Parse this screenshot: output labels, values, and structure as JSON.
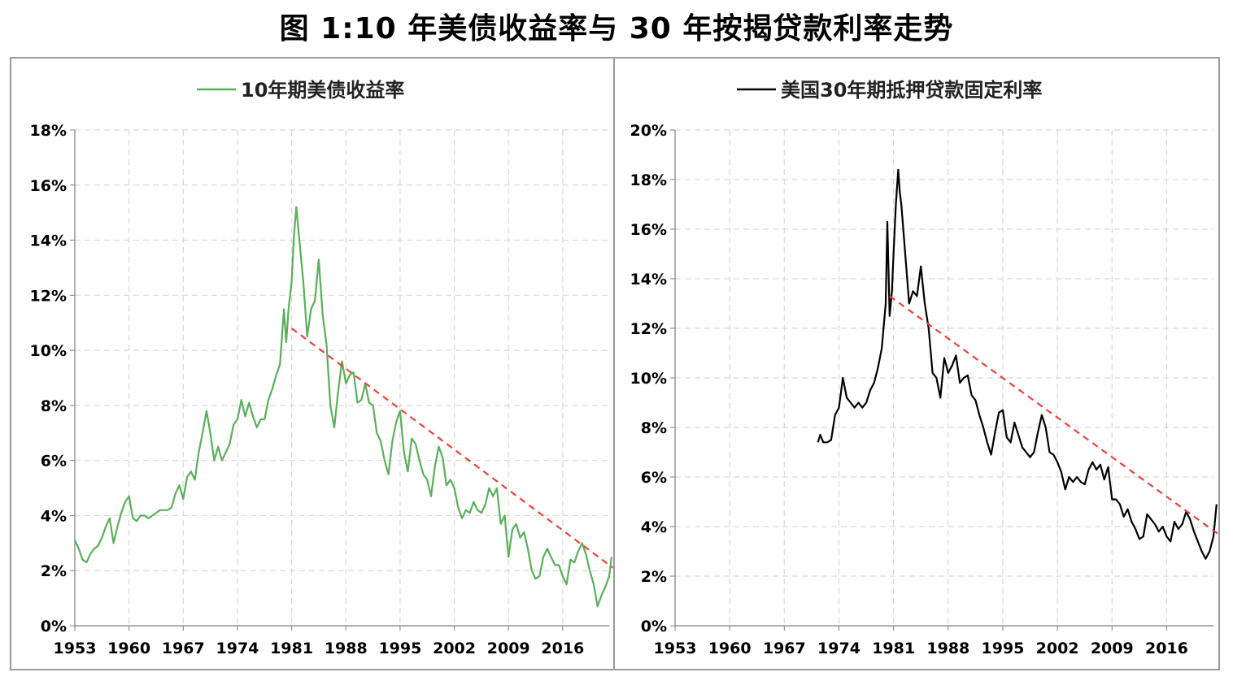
{
  "title": "图 1:10 年美债收益率与 30 年按揭贷款利率走势",
  "chart_data": [
    {
      "type": "line",
      "legend": "10年期美债收益率",
      "legend_position": "top-center",
      "xlim": [
        1953,
        2022
      ],
      "ylim": [
        0,
        18
      ],
      "x_ticks": [
        "1953",
        "1960",
        "1967",
        "1974",
        "1981",
        "1988",
        "1995",
        "2002",
        "2009",
        "2016"
      ],
      "y_ticks": [
        "0%",
        "2%",
        "4%",
        "6%",
        "8%",
        "10%",
        "12%",
        "14%",
        "16%",
        "18%"
      ],
      "grid": true,
      "series": [
        {
          "name": "10年期美债收益率",
          "color": "#5aaf5a",
          "x": [
            1953.0,
            1953.5,
            1954.0,
            1954.5,
            1955.0,
            1955.5,
            1956.0,
            1956.5,
            1957.0,
            1957.5,
            1958.0,
            1958.5,
            1959.0,
            1959.5,
            1960.0,
            1960.5,
            1961.0,
            1961.5,
            1962.0,
            1962.5,
            1963.0,
            1963.5,
            1964.0,
            1964.5,
            1965.0,
            1965.5,
            1966.0,
            1966.5,
            1967.0,
            1967.5,
            1968.0,
            1968.5,
            1969.0,
            1969.5,
            1970.0,
            1970.5,
            1971.0,
            1971.5,
            1972.0,
            1972.5,
            1973.0,
            1973.5,
            1974.0,
            1974.5,
            1975.0,
            1975.5,
            1976.0,
            1976.5,
            1977.0,
            1977.5,
            1978.0,
            1978.5,
            1979.0,
            1979.5,
            1980.0,
            1980.3,
            1980.6,
            1981.0,
            1981.3,
            1981.6,
            1982.0,
            1982.5,
            1983.0,
            1983.5,
            1984.0,
            1984.5,
            1985.0,
            1985.5,
            1986.0,
            1986.5,
            1987.0,
            1987.5,
            1988.0,
            1988.5,
            1989.0,
            1989.5,
            1990.0,
            1990.5,
            1991.0,
            1991.5,
            1992.0,
            1992.5,
            1993.0,
            1993.5,
            1994.0,
            1994.5,
            1995.0,
            1995.5,
            1996.0,
            1996.5,
            1997.0,
            1997.5,
            1998.0,
            1998.5,
            1999.0,
            1999.5,
            2000.0,
            2000.5,
            2001.0,
            2001.5,
            2002.0,
            2002.5,
            2003.0,
            2003.5,
            2004.0,
            2004.5,
            2005.0,
            2005.5,
            2006.0,
            2006.5,
            2007.0,
            2007.5,
            2008.0,
            2008.5,
            2009.0,
            2009.5,
            2010.0,
            2010.5,
            2011.0,
            2011.5,
            2012.0,
            2012.5,
            2013.0,
            2013.5,
            2014.0,
            2014.5,
            2015.0,
            2015.5,
            2016.0,
            2016.5,
            2017.0,
            2017.5,
            2018.0,
            2018.5,
            2019.0,
            2019.5,
            2020.0,
            2020.5,
            2021.0,
            2021.5,
            2022.0,
            2022.3
          ],
          "y": [
            3.1,
            2.8,
            2.4,
            2.3,
            2.6,
            2.8,
            2.9,
            3.2,
            3.6,
            3.9,
            3.0,
            3.6,
            4.1,
            4.5,
            4.7,
            3.9,
            3.8,
            4.0,
            4.0,
            3.9,
            4.0,
            4.1,
            4.2,
            4.2,
            4.2,
            4.3,
            4.8,
            5.1,
            4.6,
            5.4,
            5.6,
            5.3,
            6.3,
            7.0,
            7.8,
            7.0,
            6.0,
            6.5,
            6.0,
            6.3,
            6.6,
            7.3,
            7.5,
            8.2,
            7.6,
            8.1,
            7.6,
            7.2,
            7.5,
            7.5,
            8.2,
            8.6,
            9.1,
            9.5,
            11.5,
            10.3,
            11.5,
            12.5,
            14.2,
            15.2,
            14.0,
            12.5,
            10.5,
            11.5,
            11.8,
            13.3,
            11.3,
            10.2,
            8.0,
            7.2,
            8.5,
            9.6,
            8.8,
            9.1,
            9.2,
            8.1,
            8.2,
            8.8,
            8.1,
            8.0,
            7.0,
            6.7,
            6.0,
            5.5,
            6.7,
            7.4,
            7.8,
            6.3,
            5.6,
            6.8,
            6.6,
            6.0,
            5.5,
            5.3,
            4.7,
            5.8,
            6.5,
            6.1,
            5.1,
            5.3,
            5.0,
            4.3,
            3.9,
            4.2,
            4.1,
            4.5,
            4.2,
            4.1,
            4.4,
            5.0,
            4.7,
            5.0,
            3.7,
            4.0,
            2.5,
            3.5,
            3.7,
            3.2,
            3.4,
            2.8,
            2.0,
            1.7,
            1.8,
            2.5,
            2.8,
            2.5,
            2.2,
            2.2,
            1.8,
            1.5,
            2.4,
            2.3,
            2.7,
            3.0,
            2.6,
            2.0,
            1.5,
            0.7,
            1.1,
            1.4,
            1.8,
            2.5
          ],
          "style": "solid"
        },
        {
          "name": "trend",
          "color": "#e8433a",
          "x": [
            1981.0,
            2022.5
          ],
          "y": [
            10.8,
            2.1
          ],
          "style": "dashed"
        }
      ]
    },
    {
      "type": "line",
      "legend": "美国30年期抵押贷款固定利率",
      "legend_position": "top-center",
      "xlim": [
        1953,
        2022
      ],
      "ylim": [
        0,
        20
      ],
      "x_ticks": [
        "1953",
        "1960",
        "1967",
        "1974",
        "1981",
        "1988",
        "1995",
        "2002",
        "2009",
        "2016"
      ],
      "y_ticks": [
        "0%",
        "2%",
        "4%",
        "6%",
        "8%",
        "10%",
        "12%",
        "14%",
        "16%",
        "18%",
        "20%"
      ],
      "grid": true,
      "series": [
        {
          "name": "美国30年期抵押贷款固定利率",
          "color": "#000000",
          "x": [
            1971.3,
            1971.6,
            1972.0,
            1972.5,
            1973.0,
            1973.5,
            1974.0,
            1974.5,
            1975.0,
            1975.5,
            1976.0,
            1976.5,
            1977.0,
            1977.5,
            1978.0,
            1978.5,
            1979.0,
            1979.5,
            1980.0,
            1980.2,
            1980.5,
            1980.8,
            1981.0,
            1981.3,
            1981.6,
            1981.8,
            1982.0,
            1982.5,
            1983.0,
            1983.5,
            1984.0,
            1984.5,
            1985.0,
            1985.5,
            1986.0,
            1986.5,
            1987.0,
            1987.5,
            1988.0,
            1988.5,
            1989.0,
            1989.5,
            1990.0,
            1990.5,
            1991.0,
            1991.5,
            1992.0,
            1992.5,
            1993.0,
            1993.5,
            1994.0,
            1994.5,
            1995.0,
            1995.5,
            1996.0,
            1996.5,
            1997.0,
            1997.5,
            1998.0,
            1998.5,
            1999.0,
            1999.5,
            2000.0,
            2000.5,
            2001.0,
            2001.5,
            2002.0,
            2002.5,
            2003.0,
            2003.5,
            2004.0,
            2004.5,
            2005.0,
            2005.5,
            2006.0,
            2006.5,
            2007.0,
            2007.5,
            2008.0,
            2008.5,
            2009.0,
            2009.5,
            2010.0,
            2010.5,
            2011.0,
            2011.5,
            2012.0,
            2012.5,
            2013.0,
            2013.5,
            2014.0,
            2014.5,
            2015.0,
            2015.5,
            2016.0,
            2016.5,
            2017.0,
            2017.5,
            2018.0,
            2018.5,
            2019.0,
            2019.5,
            2020.0,
            2020.5,
            2021.0,
            2021.5,
            2022.0,
            2022.4
          ],
          "y": [
            7.4,
            7.7,
            7.4,
            7.4,
            7.5,
            8.5,
            8.8,
            10.0,
            9.2,
            9.0,
            8.8,
            9.0,
            8.8,
            9.0,
            9.5,
            9.8,
            10.4,
            11.2,
            13.0,
            16.3,
            12.5,
            13.5,
            15.0,
            17.0,
            18.4,
            17.5,
            17.0,
            15.0,
            13.0,
            13.5,
            13.3,
            14.5,
            13.0,
            12.0,
            10.2,
            10.0,
            9.2,
            10.8,
            10.2,
            10.5,
            10.9,
            9.8,
            10.0,
            10.1,
            9.3,
            9.1,
            8.5,
            8.0,
            7.4,
            6.9,
            7.8,
            8.6,
            8.7,
            7.6,
            7.4,
            8.2,
            7.7,
            7.2,
            7.0,
            6.8,
            7.0,
            7.8,
            8.5,
            8.0,
            7.0,
            6.9,
            6.6,
            6.2,
            5.5,
            6.0,
            5.8,
            6.0,
            5.8,
            5.7,
            6.3,
            6.6,
            6.3,
            6.5,
            5.9,
            6.4,
            5.1,
            5.1,
            4.9,
            4.4,
            4.7,
            4.2,
            3.9,
            3.5,
            3.6,
            4.5,
            4.3,
            4.1,
            3.8,
            4.0,
            3.6,
            3.4,
            4.2,
            3.9,
            4.1,
            4.6,
            4.3,
            3.8,
            3.4,
            3.0,
            2.7,
            3.0,
            3.6,
            4.9
          ],
          "style": "solid"
        },
        {
          "name": "trend",
          "color": "#e8433a",
          "x": [
            1980.5,
            2022.6
          ],
          "y": [
            13.3,
            3.7
          ],
          "style": "dashed"
        }
      ]
    }
  ]
}
